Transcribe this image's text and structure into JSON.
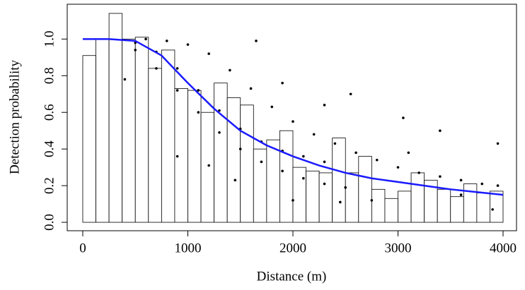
{
  "chart_data": {
    "type": "histogram",
    "x_label": "Distance (m)",
    "y_label": "Detection probability",
    "bins": [
      0,
      125,
      250,
      375,
      500,
      625,
      750,
      875,
      1000,
      1125,
      1250,
      1375,
      1500,
      1625,
      1750,
      1875,
      2000,
      2125,
      2250,
      2375,
      2500,
      2625,
      2750,
      2875,
      3000,
      3125,
      3250,
      3375,
      3500,
      3625,
      3750,
      3875,
      4000
    ],
    "values": [
      0.91,
      1.0,
      1.14,
      1.0,
      1.01,
      0.84,
      0.94,
      0.73,
      0.72,
      0.6,
      0.76,
      0.68,
      0.64,
      0.4,
      0.45,
      0.5,
      0.3,
      0.28,
      0.27,
      0.46,
      0.27,
      0.36,
      0.18,
      0.13,
      0.17,
      0.27,
      0.23,
      0.18,
      0.14,
      0.21,
      0.16,
      0.17
    ],
    "color": "#ffffff",
    "xlim": [
      -148,
      4128
    ],
    "ylim": [
      -0.046,
      1.19
    ],
    "xticks": [
      0,
      1000,
      2000,
      3000,
      4000
    ],
    "yticks": [
      {
        "value": 0,
        "label": "0.0"
      },
      0.2,
      0.4,
      0.6,
      0.8,
      {
        "value": 1,
        "label": "1.0"
      }
    ],
    "overlays": [
      {
        "type": "scatter",
        "color": "#000000",
        "x": [
          600,
          800,
          1000,
          1200,
          1400,
          1600,
          1800,
          2000,
          2200,
          2400,
          2600,
          2800,
          3000,
          3200,
          3400,
          3600,
          3800,
          3950,
          500,
          700,
          900,
          1100,
          1300,
          1500,
          1700,
          1900,
          2100,
          2300,
          500,
          700,
          900,
          1100,
          1300,
          1500,
          1700,
          1900,
          2100,
          2300,
          2500,
          1650,
          1900,
          2300,
          2550,
          3050,
          3400,
          3950,
          3100,
          2450,
          2750,
          3600,
          3900,
          400,
          900,
          1200,
          1450,
          2000
        ],
        "values": [
          1.0,
          0.99,
          0.97,
          0.92,
          0.83,
          0.73,
          0.63,
          0.55,
          0.48,
          0.43,
          0.38,
          0.34,
          0.3,
          0.27,
          0.25,
          0.23,
          0.21,
          0.2,
          0.98,
          0.93,
          0.84,
          0.72,
          0.61,
          0.51,
          0.44,
          0.39,
          0.36,
          0.33,
          0.94,
          0.84,
          0.72,
          0.6,
          0.49,
          0.4,
          0.33,
          0.28,
          0.24,
          0.21,
          0.19,
          0.99,
          0.76,
          0.64,
          0.7,
          0.57,
          0.5,
          0.43,
          0.38,
          0.11,
          0.12,
          0.15,
          0.07,
          0.78,
          0.36,
          0.31,
          0.23,
          0.12
        ]
      },
      {
        "type": "line",
        "color": "#1a1aff",
        "x": [
          0,
          250,
          500,
          750,
          1000,
          1250,
          1500,
          1750,
          2000,
          2250,
          2500,
          2750,
          3000,
          3250,
          3500,
          3750,
          4000
        ],
        "values": [
          1.0,
          1.0,
          0.99,
          0.91,
          0.76,
          0.62,
          0.5,
          0.42,
          0.36,
          0.31,
          0.27,
          0.24,
          0.22,
          0.2,
          0.18,
          0.165,
          0.15
        ]
      }
    ]
  }
}
